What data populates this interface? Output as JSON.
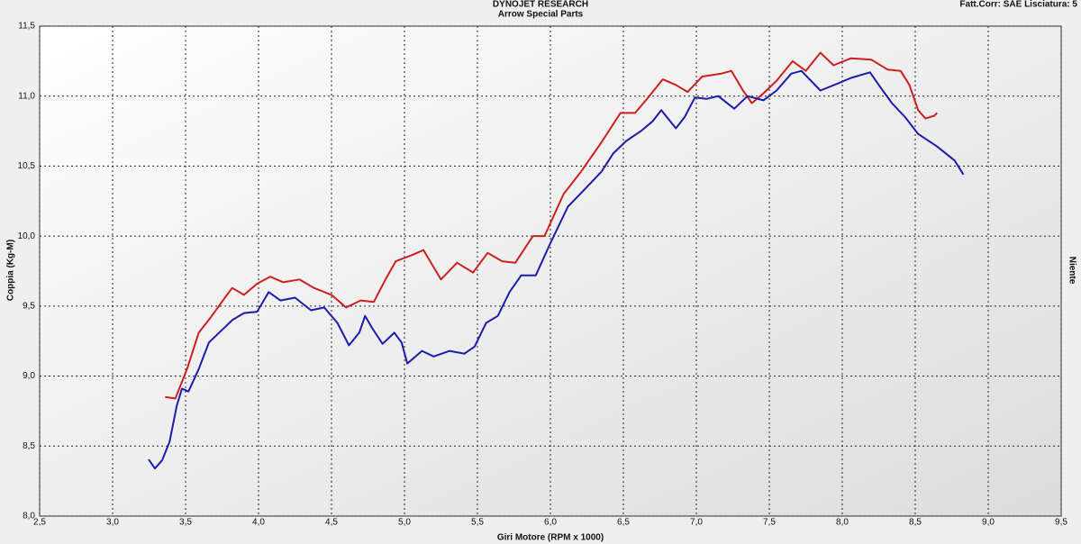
{
  "chart_data": {
    "type": "line",
    "title": "DYNOJET RESEARCH",
    "subtitle": "Arrow Special Parts",
    "annotations": [
      "Fatt.Corr: SAE  Lisciatura: 5",
      "Niente"
    ],
    "x_label": "Giri Motore (RPM x 1000)",
    "y_label": "Coppia (Kg-M)",
    "xlim": [
      2.5,
      9.5
    ],
    "ylim": [
      8.0,
      11.5
    ],
    "xticks": [
      {
        "value": 2.5,
        "label": "2,5"
      },
      {
        "value": 3.0,
        "label": "3,0"
      },
      {
        "value": 3.5,
        "label": "3,5"
      },
      {
        "value": 4.0,
        "label": "4,0"
      },
      {
        "value": 4.5,
        "label": "4,5"
      },
      {
        "value": 5.0,
        "label": "5,0"
      },
      {
        "value": 5.5,
        "label": "5,5"
      },
      {
        "value": 6.0,
        "label": "6,0"
      },
      {
        "value": 6.5,
        "label": "6,5"
      },
      {
        "value": 7.0,
        "label": "7,0"
      },
      {
        "value": 7.5,
        "label": "7,5"
      },
      {
        "value": 8.0,
        "label": "8,0"
      },
      {
        "value": 8.5,
        "label": "8,5"
      },
      {
        "value": 9.0,
        "label": "9,0"
      },
      {
        "value": 9.5,
        "label": "9,5"
      }
    ],
    "yticks": [
      {
        "value": 8.0,
        "label": "8,0"
      },
      {
        "value": 8.5,
        "label": "8,5"
      },
      {
        "value": 9.0,
        "label": "9,0"
      },
      {
        "value": 9.5,
        "label": "9,5"
      },
      {
        "value": 10.0,
        "label": "10,0"
      },
      {
        "value": 10.5,
        "label": "10,5"
      },
      {
        "value": 11.0,
        "label": "11,0"
      },
      {
        "value": 11.5,
        "label": "11,5"
      }
    ],
    "grid": true,
    "series": [
      {
        "color": "#cc2020",
        "x": [
          3.36,
          3.43,
          3.51,
          3.59,
          3.68,
          3.77,
          3.82,
          3.9,
          3.99,
          4.08,
          4.17,
          4.28,
          4.38,
          4.5,
          4.6,
          4.7,
          4.79,
          4.87,
          4.94,
          5.04,
          5.13,
          5.25,
          5.36,
          5.47,
          5.57,
          5.67,
          5.76,
          5.88,
          5.96,
          6.09,
          6.21,
          6.35,
          6.48,
          6.58,
          6.67,
          6.77,
          6.86,
          6.94,
          7.04,
          7.17,
          7.24,
          7.32,
          7.38,
          7.46,
          7.55,
          7.66,
          7.75,
          7.85,
          7.94,
          8.06,
          8.2,
          8.31,
          8.4,
          8.46,
          8.52,
          8.57,
          8.63,
          8.65
        ],
        "values": [
          8.85,
          8.84,
          9.05,
          9.31,
          9.43,
          9.56,
          9.63,
          9.58,
          9.66,
          9.71,
          9.67,
          9.69,
          9.63,
          9.58,
          9.49,
          9.54,
          9.53,
          9.69,
          9.82,
          9.86,
          9.9,
          9.69,
          9.81,
          9.74,
          9.88,
          9.82,
          9.81,
          10.0,
          10.0,
          10.3,
          10.46,
          10.67,
          10.88,
          10.88,
          10.99,
          11.12,
          11.08,
          11.03,
          11.14,
          11.16,
          11.18,
          11.04,
          10.95,
          11.02,
          11.11,
          11.25,
          11.18,
          11.31,
          11.22,
          11.27,
          11.26,
          11.19,
          11.18,
          11.08,
          10.9,
          10.84,
          10.86,
          10.88
        ]
      },
      {
        "color": "#1c1caa",
        "x": [
          3.247,
          3.29,
          3.34,
          3.39,
          3.44,
          3.475,
          3.52,
          3.59,
          3.66,
          3.74,
          3.82,
          3.9,
          3.99,
          4.07,
          4.15,
          4.25,
          4.36,
          4.45,
          4.54,
          4.62,
          4.69,
          4.73,
          4.78,
          4.85,
          4.93,
          4.98,
          5.02,
          5.12,
          5.2,
          5.31,
          5.41,
          5.48,
          5.56,
          5.64,
          5.72,
          5.8,
          5.9,
          6.0,
          6.12,
          6.24,
          6.35,
          6.43,
          6.52,
          6.62,
          6.7,
          6.76,
          6.86,
          6.92,
          6.99,
          7.07,
          7.15,
          7.26,
          7.35,
          7.46,
          7.55,
          7.65,
          7.72,
          7.85,
          7.97,
          8.06,
          8.19,
          8.25,
          8.34,
          8.43,
          8.52,
          8.65,
          8.77,
          8.83
        ],
        "values": [
          8.405,
          8.34,
          8.4,
          8.53,
          8.79,
          8.91,
          8.89,
          9.05,
          9.24,
          9.32,
          9.4,
          9.45,
          9.46,
          9.6,
          9.54,
          9.56,
          9.47,
          9.49,
          9.38,
          9.22,
          9.31,
          9.43,
          9.34,
          9.23,
          9.31,
          9.24,
          9.09,
          9.18,
          9.14,
          9.18,
          9.16,
          9.21,
          9.38,
          9.43,
          9.6,
          9.72,
          9.72,
          9.95,
          10.21,
          10.34,
          10.46,
          10.59,
          10.68,
          10.75,
          10.82,
          10.9,
          10.77,
          10.85,
          10.99,
          10.98,
          11.0,
          10.91,
          11.0,
          10.97,
          11.04,
          11.16,
          11.18,
          11.04,
          11.09,
          11.13,
          11.17,
          11.08,
          10.95,
          10.85,
          10.73,
          10.64,
          10.54,
          10.44
        ]
      }
    ]
  }
}
